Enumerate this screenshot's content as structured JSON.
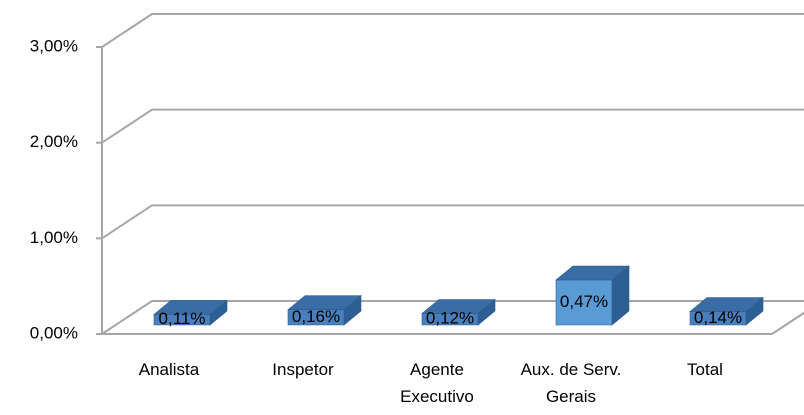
{
  "chart_data": {
    "type": "bar3d",
    "categories": [
      "Analista",
      "Inspetor",
      "Agente Executivo",
      "Aux. de Serv. Gerais",
      "Total"
    ],
    "values": [
      0.11,
      0.16,
      0.12,
      0.47,
      0.14
    ],
    "value_labels": [
      "0,11%",
      "0,16%",
      "0,12%",
      "0,47%",
      "0,14%"
    ],
    "colors": [
      "#4a7fbd",
      "#4a7fbd",
      "#4a7fbd",
      "#5b9bd5",
      "#4a7fbd"
    ],
    "ylim": [
      0,
      3
    ],
    "yticks": [
      {
        "value": 0,
        "label": "0,00%"
      },
      {
        "value": 1,
        "label": "1,00%"
      },
      {
        "value": 2,
        "label": "2,00%"
      },
      {
        "value": 3,
        "label": "3,00%"
      }
    ],
    "grid": true
  }
}
